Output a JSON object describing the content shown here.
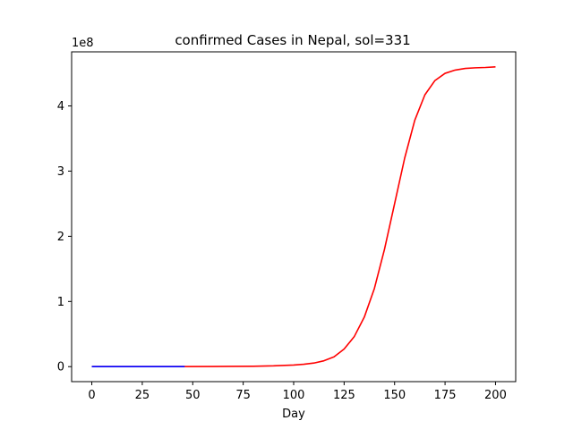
{
  "chart_data": {
    "type": "line",
    "title": "confirmed Cases in Nepal, sol=331",
    "xlabel": "Day",
    "ylabel": "",
    "y_offset_text": "1e8",
    "xlim": [
      -10,
      210
    ],
    "ylim": [
      -0.23,
      4.83
    ],
    "y_scale_note": "values in units of 1e8",
    "grid": false,
    "legend": "none",
    "x_ticks": [
      {
        "value": 0,
        "label": "0"
      },
      {
        "value": 25,
        "label": "25"
      },
      {
        "value": 50,
        "label": "50"
      },
      {
        "value": 75,
        "label": "75"
      },
      {
        "value": 100,
        "label": "100"
      },
      {
        "value": 125,
        "label": "125"
      },
      {
        "value": 150,
        "label": "150"
      },
      {
        "value": 175,
        "label": "175"
      },
      {
        "value": 200,
        "label": "200"
      }
    ],
    "y_ticks": [
      {
        "value": 0,
        "label": "0"
      },
      {
        "value": 1,
        "label": "1"
      },
      {
        "value": 2,
        "label": "2"
      },
      {
        "value": 3,
        "label": "3"
      },
      {
        "value": 4,
        "label": "4"
      }
    ],
    "series": [
      {
        "color": "#ff0000",
        "x": [
          0,
          20,
          40,
          60,
          80,
          90,
          100,
          105,
          110,
          115,
          120,
          125,
          130,
          135,
          140,
          145,
          150,
          155,
          160,
          165,
          170,
          175,
          180,
          185,
          190,
          195,
          200
        ],
        "y": [
          0,
          0,
          0.001,
          0.002,
          0.006,
          0.012,
          0.025,
          0.037,
          0.055,
          0.09,
          0.15,
          0.27,
          0.46,
          0.76,
          1.2,
          1.8,
          2.5,
          3.2,
          3.78,
          4.17,
          4.39,
          4.5,
          4.55,
          4.575,
          4.585,
          4.59,
          4.6
        ]
      },
      {
        "color": "#0000ff",
        "x": [
          0,
          10,
          20,
          30,
          40,
          46
        ],
        "y": [
          0,
          0,
          0,
          0,
          0,
          0
        ]
      }
    ]
  }
}
